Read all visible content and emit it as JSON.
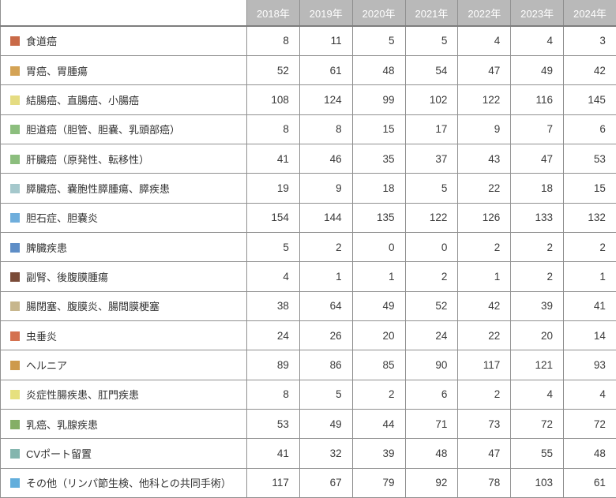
{
  "colors": {
    "header_bg": "#B9B9B9",
    "header_text": "#FFFFFF",
    "border": "#909090",
    "header_bottom_border": "#7E7E7E",
    "cell_text": "#3A3A3A"
  },
  "chart_data": {
    "type": "table",
    "title": "",
    "columns": [
      "2018年",
      "2019年",
      "2020年",
      "2021年",
      "2022年",
      "2023年",
      "2024年"
    ],
    "rows": [
      {
        "label": "食道癌",
        "color": "#C96A48",
        "values": [
          8,
          11,
          5,
          5,
          4,
          4,
          3
        ]
      },
      {
        "label": "胃癌、胃腫瘍",
        "color": "#D4A355",
        "values": [
          52,
          61,
          48,
          54,
          47,
          49,
          42
        ]
      },
      {
        "label": "結腸癌、直腸癌、小腸癌",
        "color": "#E5DC82",
        "values": [
          108,
          124,
          99,
          102,
          122,
          116,
          145
        ]
      },
      {
        "label": "胆道癌（胆管、胆嚢、乳頭部癌）",
        "color": "#8CBE7E",
        "values": [
          8,
          8,
          15,
          17,
          9,
          7,
          6
        ]
      },
      {
        "label": "肝臓癌（原発性、転移性）",
        "color": "#8CBE7E",
        "values": [
          41,
          46,
          35,
          37,
          43,
          47,
          53
        ]
      },
      {
        "label": "膵臓癌、嚢胞性膵腫瘍、膵疾患",
        "color": "#A5C8CC",
        "values": [
          19,
          9,
          18,
          5,
          22,
          18,
          15
        ]
      },
      {
        "label": "胆石症、胆嚢炎",
        "color": "#6FAEDC",
        "values": [
          154,
          144,
          135,
          122,
          126,
          133,
          132
        ]
      },
      {
        "label": "脾臓疾患",
        "color": "#5E8EC7",
        "values": [
          5,
          2,
          0,
          0,
          2,
          2,
          2
        ]
      },
      {
        "label": "副腎、後腹膜腫瘍",
        "color": "#7A4B38",
        "values": [
          4,
          1,
          1,
          2,
          1,
          2,
          1
        ]
      },
      {
        "label": "腸閉塞、腹膜炎、腸間膜梗塞",
        "color": "#C7B68D",
        "values": [
          38,
          64,
          49,
          52,
          42,
          39,
          41
        ]
      },
      {
        "label": "虫垂炎",
        "color": "#D4714F",
        "values": [
          24,
          26,
          20,
          24,
          22,
          20,
          14
        ]
      },
      {
        "label": "ヘルニア",
        "color": "#CE9A4C",
        "values": [
          89,
          86,
          85,
          90,
          117,
          121,
          93
        ]
      },
      {
        "label": "炎症性腸疾患、肛門疾患",
        "color": "#E6E07E",
        "values": [
          8,
          5,
          2,
          6,
          2,
          4,
          4
        ]
      },
      {
        "label": "乳癌、乳腺疾患",
        "color": "#84AE66",
        "values": [
          53,
          49,
          44,
          71,
          73,
          72,
          72
        ]
      },
      {
        "label": "CVポート留置",
        "color": "#83B5AE",
        "values": [
          41,
          32,
          39,
          48,
          47,
          55,
          48
        ]
      },
      {
        "label": "その他（リンパ節生検、他科との共同手術）",
        "color": "#62AEDC",
        "values": [
          117,
          67,
          79,
          92,
          78,
          103,
          61
        ]
      }
    ]
  }
}
